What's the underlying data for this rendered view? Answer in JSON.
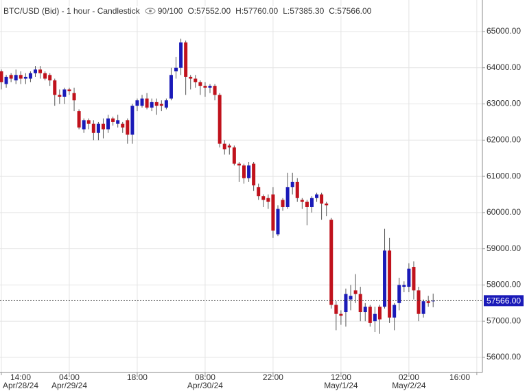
{
  "chart_data": {
    "type": "candlestick",
    "title": "BTC/USD (Bid) - 1 hour - Candlestick",
    "indicator": "90/100",
    "ohlc_readout": [
      "O:57552.00",
      "H:57760.00",
      "L:57385.30",
      "C:57566.00"
    ],
    "categories": [
      "14:00",
      null,
      null,
      null,
      null,
      null,
      null,
      null,
      null,
      null,
      null,
      null,
      null,
      null,
      "04:00",
      null,
      null,
      null,
      null,
      null,
      null,
      null,
      null,
      null,
      null,
      null,
      null,
      null,
      "18:00",
      null,
      null,
      null,
      null,
      null,
      null,
      null,
      null,
      null,
      null,
      null,
      null,
      null,
      "08:00",
      null,
      null,
      null,
      null,
      null,
      null,
      null,
      null,
      null,
      null,
      null,
      null,
      null,
      "22:00",
      null,
      null,
      null,
      null,
      null,
      null,
      null,
      null,
      null,
      null,
      null,
      null,
      null,
      "12:00",
      null,
      null,
      null,
      null,
      null,
      null,
      null,
      null,
      null,
      null,
      null,
      null,
      null,
      "02:00",
      null,
      null,
      null,
      null,
      null,
      null,
      null,
      null,
      null,
      null,
      null,
      null,
      null,
      "16:00"
    ],
    "category_dates": [
      "Apr/28/24",
      null,
      null,
      null,
      null,
      null,
      null,
      null,
      null,
      null,
      null,
      null,
      null,
      null,
      "Apr/29/24",
      null,
      null,
      null,
      null,
      null,
      null,
      null,
      null,
      null,
      null,
      null,
      null,
      null,
      null,
      null,
      null,
      null,
      null,
      null,
      null,
      null,
      null,
      null,
      null,
      null,
      null,
      null,
      "Apr/30/24",
      null,
      null,
      null,
      null,
      null,
      null,
      null,
      null,
      null,
      null,
      null,
      null,
      null,
      null,
      null,
      null,
      null,
      null,
      null,
      null,
      null,
      null,
      null,
      null,
      null,
      null,
      null,
      "May/1/24",
      null,
      null,
      null,
      null,
      null,
      null,
      null,
      null,
      null,
      null,
      null,
      null,
      null,
      "May/2/24",
      null,
      null,
      null,
      null,
      null,
      null,
      null,
      null,
      null,
      null,
      null,
      null,
      null,
      null
    ],
    "open": [
      63900,
      63550,
      63800,
      63650,
      63800,
      63700,
      63700,
      63850,
      63950,
      63850,
      63800,
      63650,
      63250,
      63200,
      63400,
      63300,
      62800,
      62300,
      62550,
      62450,
      62200,
      62450,
      62300,
      62600,
      62450,
      62450,
      62550,
      62150,
      62950,
      62950,
      63150,
      62900,
      63050,
      63000,
      62900,
      63150,
      63900,
      64000,
      64700,
      63750,
      63700,
      63600,
      63500,
      63450,
      63500,
      63250,
      61900,
      61850,
      61800,
      61350,
      61300,
      60950,
      61350,
      60700,
      60450,
      60400,
      60500,
      59400,
      60350,
      60150,
      60700,
      60850,
      60350,
      60300,
      60150,
      60400,
      60500,
      60250,
      59800,
      57450,
      57200,
      57250,
      57600,
      57850,
      57750,
      57250,
      57400,
      57000,
      57400,
      57400,
      58950,
      57100,
      57500,
      57950,
      57950,
      58500,
      57850,
      57200,
      57550,
      57552,
      null,
      null,
      null,
      null,
      null,
      null,
      null,
      null,
      null
    ],
    "high": [
      63950,
      63800,
      63850,
      63950,
      63900,
      63850,
      63900,
      64050,
      64050,
      63900,
      63850,
      63700,
      63400,
      63450,
      63450,
      63450,
      62850,
      62600,
      62600,
      62550,
      62500,
      62600,
      62700,
      62650,
      62700,
      62500,
      62600,
      63000,
      63150,
      63250,
      63300,
      63150,
      63150,
      63100,
      63150,
      64000,
      64300,
      64800,
      64750,
      63800,
      63800,
      63650,
      63600,
      63550,
      63550,
      63300,
      62000,
      61900,
      61850,
      61400,
      61350,
      61400,
      61400,
      60800,
      60500,
      60500,
      60700,
      60200,
      60400,
      61100,
      61100,
      60950,
      60400,
      60350,
      60450,
      60550,
      60550,
      60300,
      59850,
      57550,
      57300,
      57900,
      58000,
      58300,
      57950,
      57500,
      57450,
      57400,
      57450,
      59550,
      59300,
      57500,
      58200,
      58100,
      58600,
      58650,
      57950,
      57600,
      57700,
      57760,
      null,
      null,
      null,
      null,
      null,
      null,
      null,
      null,
      null
    ],
    "low": [
      63400,
      63450,
      63600,
      63550,
      63550,
      63550,
      63600,
      63750,
      63700,
      63650,
      63500,
      62950,
      63000,
      63000,
      63250,
      62800,
      62300,
      62200,
      62300,
      62000,
      62000,
      62050,
      62200,
      62400,
      62350,
      62200,
      61900,
      61900,
      62800,
      62900,
      62850,
      62800,
      62700,
      62800,
      62850,
      63100,
      63700,
      63800,
      63250,
      63400,
      63450,
      63250,
      63200,
      63300,
      63100,
      61800,
      61600,
      61600,
      61300,
      60850,
      60800,
      60850,
      60600,
      60350,
      60150,
      60100,
      59300,
      59350,
      60050,
      60100,
      60500,
      60300,
      60100,
      59650,
      60000,
      60300,
      59800,
      59900,
      57350,
      56750,
      56900,
      56850,
      57300,
      57500,
      57000,
      57000,
      56850,
      56700,
      56650,
      57350,
      56950,
      56750,
      57300,
      57800,
      57800,
      57600,
      57000,
      57100,
      57400,
      57385.3,
      null,
      null,
      null,
      null,
      null,
      null,
      null,
      null,
      null
    ],
    "close": [
      63600,
      63750,
      63700,
      63800,
      63700,
      63750,
      63850,
      63950,
      63850,
      63700,
      63650,
      63250,
      63200,
      63400,
      63350,
      63100,
      62350,
      62550,
      62450,
      62200,
      62450,
      62300,
      62600,
      62500,
      62550,
      62350,
      62150,
      62950,
      63100,
      63150,
      62900,
      63050,
      62950,
      62950,
      63100,
      63800,
      64000,
      64700,
      63750,
      63700,
      63600,
      63500,
      63450,
      63500,
      63250,
      61900,
      61750,
      61800,
      61350,
      61300,
      60950,
      61300,
      60750,
      60450,
      60350,
      60300,
      59500,
      60100,
      60150,
      60700,
      60850,
      60400,
      60300,
      60150,
      60400,
      60500,
      60250,
      60200,
      57450,
      57200,
      57150,
      57750,
      57700,
      57750,
      57250,
      57400,
      56950,
      57200,
      57050,
      58950,
      57100,
      57450,
      58000,
      58000,
      58450,
      57850,
      57200,
      57550,
      57500,
      57566,
      null,
      null,
      null,
      null,
      null,
      null,
      null,
      null,
      null
    ],
    "up_color": "#1a1ab8",
    "down_color": "#c0121c",
    "wick_color": "#555555",
    "ylim": [
      55583,
      65871
    ],
    "yticks": [
      {
        "value": 56000,
        "label": "56000.00"
      },
      {
        "value": 57000,
        "label": "57000.00"
      },
      {
        "value": 58000,
        "label": "58000.00"
      },
      {
        "value": 59000,
        "label": "59000.00"
      },
      {
        "value": 60000,
        "label": "60000.00"
      },
      {
        "value": 61000,
        "label": "61000.00"
      },
      {
        "value": 62000,
        "label": "62000.00"
      },
      {
        "value": 63000,
        "label": "63000.00"
      },
      {
        "value": 64000,
        "label": "64000.00"
      },
      {
        "value": 65000,
        "label": "65000.00"
      }
    ],
    "grid": true,
    "last_price": {
      "value": 57566,
      "label": "57566.00"
    }
  }
}
